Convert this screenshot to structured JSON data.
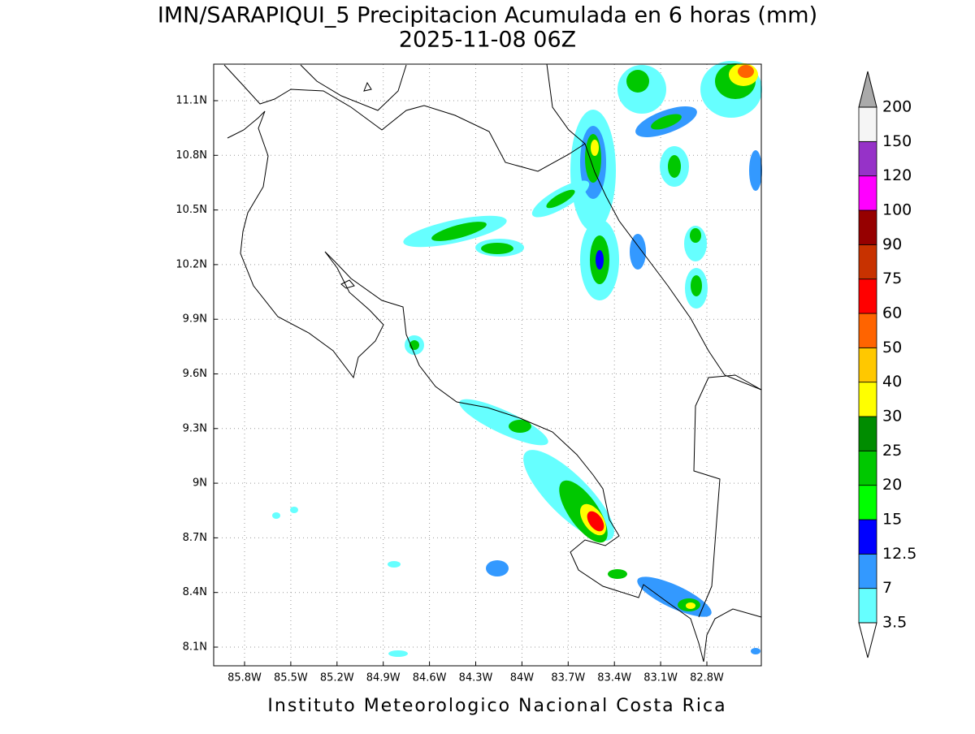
{
  "title": "IMN/SARAPIQUI_5 Precipitacion Acumulada en 6 horas (mm)",
  "subtitle": "2025-11-08 06Z",
  "footer": "Instituto Meteorologico Nacional Costa Rica",
  "lat_labels": [
    "11.1N",
    "10.8N",
    "10.5N",
    "10.2N",
    "9.9N",
    "9.6N",
    "9.3N",
    "9N",
    "8.7N",
    "8.4N",
    "8.1N"
  ],
  "lon_labels": [
    "85.8W",
    "85.5W",
    "85.2W",
    "84.9W",
    "84.6W",
    "84.3W",
    "84W",
    "83.7W",
    "83.4W",
    "83.1W",
    "82.8W"
  ],
  "colorbar": {
    "labels": [
      "3.5",
      "7",
      "12.5",
      "15",
      "20",
      "25",
      "30",
      "40",
      "50",
      "60",
      "75",
      "90",
      "100",
      "120",
      "150",
      "200"
    ],
    "colors": [
      "#66ffff",
      "#3399ff",
      "#0000ff",
      "#00ff00",
      "#00c800",
      "#008c00",
      "#ffff00",
      "#ffc800",
      "#ff6400",
      "#ff0000",
      "#c83200",
      "#960000",
      "#ff00ff",
      "#9632c8",
      "#f5f5f5"
    ],
    "below_color": "#ffffff",
    "above_color": "#aaaaaa"
  }
}
